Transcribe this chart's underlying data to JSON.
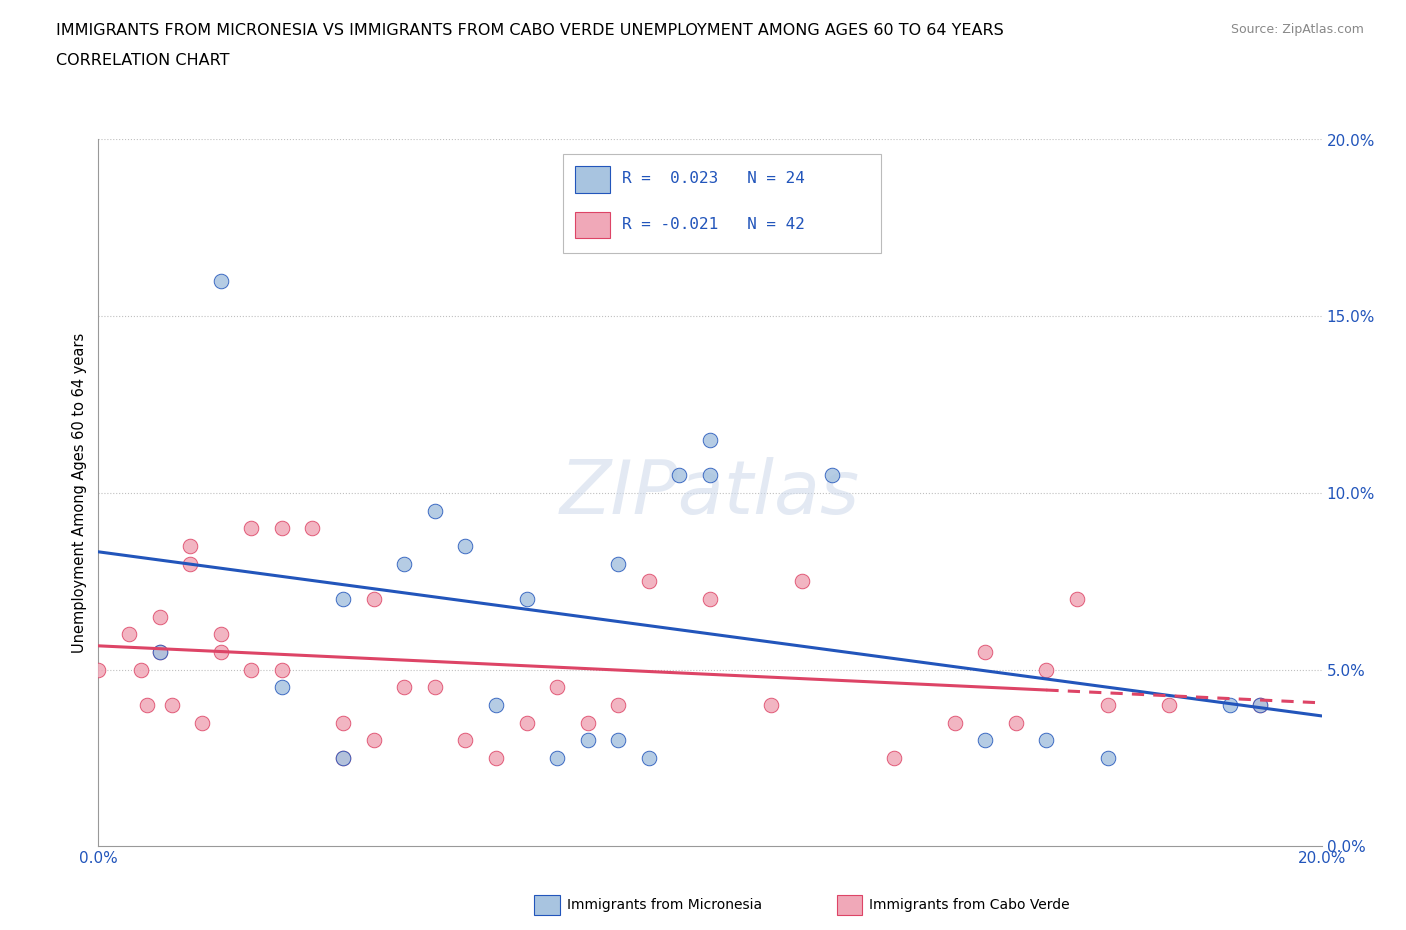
{
  "title_line1": "IMMIGRANTS FROM MICRONESIA VS IMMIGRANTS FROM CABO VERDE UNEMPLOYMENT AMONG AGES 60 TO 64 YEARS",
  "title_line2": "CORRELATION CHART",
  "source": "Source: ZipAtlas.com",
  "ylabel": "Unemployment Among Ages 60 to 64 years",
  "xlim": [
    0.0,
    0.2
  ],
  "ylim": [
    0.0,
    0.2
  ],
  "micronesia_color": "#a8c4e0",
  "cabo_verde_color": "#f0a8b8",
  "trend_micronesia_color": "#2255bb",
  "trend_cabo_verde_color": "#dd4466",
  "micronesia_R": 0.023,
  "micronesia_N": 24,
  "cabo_verde_R": -0.021,
  "cabo_verde_N": 42,
  "watermark": "ZIPatlas",
  "micronesia_x": [
    0.01,
    0.02,
    0.03,
    0.04,
    0.04,
    0.05,
    0.055,
    0.06,
    0.065,
    0.07,
    0.075,
    0.08,
    0.085,
    0.085,
    0.09,
    0.095,
    0.1,
    0.1,
    0.12,
    0.145,
    0.155,
    0.165,
    0.185,
    0.19
  ],
  "micronesia_y": [
    0.055,
    0.16,
    0.045,
    0.025,
    0.07,
    0.08,
    0.095,
    0.085,
    0.04,
    0.07,
    0.025,
    0.03,
    0.03,
    0.08,
    0.025,
    0.105,
    0.115,
    0.105,
    0.105,
    0.03,
    0.03,
    0.025,
    0.04,
    0.04
  ],
  "cabo_verde_x": [
    0.0,
    0.005,
    0.007,
    0.008,
    0.01,
    0.01,
    0.012,
    0.015,
    0.015,
    0.017,
    0.02,
    0.02,
    0.025,
    0.025,
    0.03,
    0.03,
    0.035,
    0.04,
    0.04,
    0.045,
    0.045,
    0.05,
    0.055,
    0.06,
    0.065,
    0.07,
    0.075,
    0.08,
    0.085,
    0.09,
    0.1,
    0.11,
    0.115,
    0.13,
    0.14,
    0.145,
    0.15,
    0.155,
    0.16,
    0.165,
    0.175,
    0.19
  ],
  "cabo_verde_y": [
    0.05,
    0.06,
    0.05,
    0.04,
    0.065,
    0.055,
    0.04,
    0.08,
    0.085,
    0.035,
    0.055,
    0.06,
    0.09,
    0.05,
    0.09,
    0.05,
    0.09,
    0.035,
    0.025,
    0.03,
    0.07,
    0.045,
    0.045,
    0.03,
    0.025,
    0.035,
    0.045,
    0.035,
    0.04,
    0.075,
    0.07,
    0.04,
    0.075,
    0.025,
    0.035,
    0.055,
    0.035,
    0.05,
    0.07,
    0.04,
    0.04,
    0.04
  ]
}
